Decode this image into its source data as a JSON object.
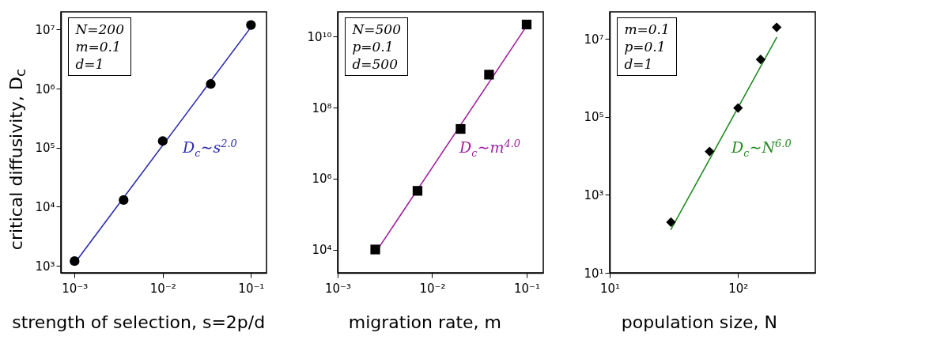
{
  "chart_data": [
    {
      "type": "scatter",
      "ylabel": "critical diffusivity, D$_{c}$",
      "xlabel": "strength of selection, s=2p/d",
      "log": "xy",
      "marker": "circle",
      "x": [
        0.001,
        0.0036,
        0.01,
        0.035,
        0.1
      ],
      "series": [
        {
          "color": "#000000",
          "values": [
            1200,
            13000,
            130000,
            1200000,
            12000000
          ]
        },
        {
          "type": "line",
          "marker": "none",
          "color": "#2b2bb0",
          "x": [
            0.001,
            0.1
          ],
          "values": [
            1100,
            11000000
          ]
        }
      ],
      "xlim": [
        0.0007,
        0.15
      ],
      "ylim": [
        760,
        20000000
      ],
      "xticks": [
        {
          "value": 0.001,
          "label": "10⁻³"
        },
        {
          "value": 0.01,
          "label": "10⁻²"
        },
        {
          "value": 0.1,
          "label": "10⁻¹"
        }
      ],
      "yticks": [
        {
          "value": 1000,
          "label": "10³"
        },
        {
          "value": 10000,
          "label": "10⁴"
        },
        {
          "value": 100000,
          "label": "10⁵"
        },
        {
          "value": 1000000,
          "label": "10⁶"
        },
        {
          "value": 10000000,
          "label": "10⁷"
        }
      ],
      "annotations": [
        "N=200",
        "m=0.1",
        "d=1",
        "D$_{c}$∼s$^{2.0}$"
      ]
    },
    {
      "type": "scatter",
      "xlabel": "migration rate, m",
      "log": "xy",
      "marker": "square",
      "x": [
        0.0025,
        0.007,
        0.02,
        0.04,
        0.1
      ],
      "series": [
        {
          "color": "#000000",
          "values": [
            10000,
            450000,
            25000000,
            850000000,
            22000000000
          ]
        },
        {
          "type": "line",
          "marker": "none",
          "color": "#a020a0",
          "x": [
            0.0025,
            0.1
          ],
          "values": [
            8000,
            20000000000
          ]
        }
      ],
      "xlim": [
        0.001,
        0.15
      ],
      "ylim": [
        2200,
        50000000000
      ],
      "xticks": [
        {
          "value": 0.001,
          "label": "10⁻³"
        },
        {
          "value": 0.01,
          "label": "10⁻²"
        },
        {
          "value": 0.1,
          "label": "10⁻¹"
        }
      ],
      "yticks": [
        {
          "value": 10000,
          "label": "10⁴"
        },
        {
          "value": 1000000,
          "label": "10⁶"
        },
        {
          "value": 100000000,
          "label": "10⁸"
        },
        {
          "value": 10000000000,
          "label": "10¹⁰"
        }
      ],
      "annotations": [
        "N=500",
        "p=0.1",
        "d=500",
        "D$_{c}$∼m$^{4.0}$"
      ]
    },
    {
      "type": "scatter",
      "xlabel": "population size, N",
      "log": "xy",
      "marker": "diamond",
      "x": [
        30,
        60,
        100,
        150,
        200
      ],
      "series": [
        {
          "color": "#000000",
          "values": [
            200,
            13000,
            170000,
            3000000,
            20000000
          ]
        },
        {
          "type": "line",
          "marker": "none",
          "color": "#228b22",
          "x": [
            30,
            200
          ],
          "values": [
            130,
            11000000
          ]
        }
      ],
      "xlim": [
        10,
        400
      ],
      "ylim": [
        10,
        50000000
      ],
      "xticks": [
        {
          "value": 10,
          "label": "10¹"
        },
        {
          "value": 100,
          "label": "10²"
        }
      ],
      "yticks": [
        {
          "value": 10,
          "label": "10¹"
        },
        {
          "value": 1000,
          "label": "10³"
        },
        {
          "value": 100000,
          "label": "10⁵"
        },
        {
          "value": 10000000,
          "label": "10⁷"
        }
      ],
      "annotations": [
        "m=0.1",
        "p=0.1",
        "d=1",
        "D$_{c}$∼N$^{6.0}$"
      ]
    }
  ]
}
